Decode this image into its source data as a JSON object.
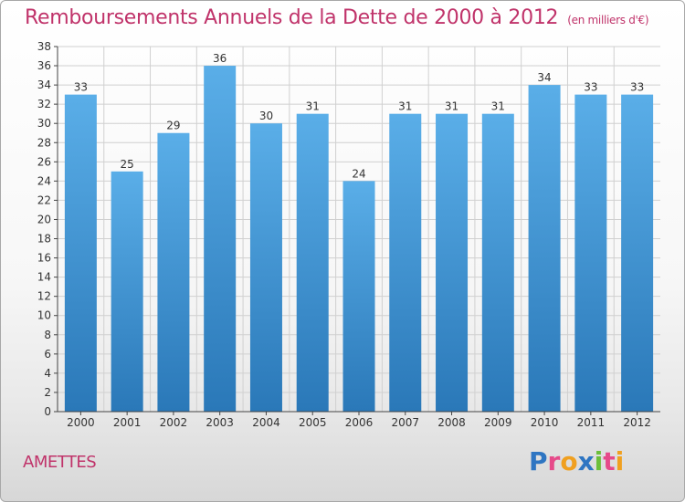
{
  "header": {
    "title": "Remboursements Annuels de la Dette de 2000 à 2012",
    "subtitle": "(en milliers d'€)"
  },
  "footer": {
    "commune": "AMETTES",
    "logo_letters": [
      "P",
      "r",
      "o",
      "x",
      "i",
      "t",
      "i"
    ],
    "logo_colors": [
      "#2e75c2",
      "#e64a8a",
      "#f0a020",
      "#2e75c2",
      "#6cbf3a",
      "#e64a8a",
      "#f0a020"
    ]
  },
  "colors": {
    "bar_top": "#5aaee8",
    "bar_bottom": "#2a78b8",
    "title": "#c0336a",
    "axis": "#444444",
    "grid": "#d0d0d0"
  },
  "chart_data": {
    "type": "bar",
    "categories": [
      "2000",
      "2001",
      "2002",
      "2003",
      "2004",
      "2005",
      "2006",
      "2007",
      "2008",
      "2009",
      "2010",
      "2011",
      "2012"
    ],
    "values": [
      33,
      25,
      29,
      36,
      30,
      31,
      24,
      31,
      31,
      31,
      34,
      33,
      33
    ],
    "ylim": [
      0,
      38
    ],
    "ytick_step": 2,
    "grid": true,
    "data_labels": true
  }
}
